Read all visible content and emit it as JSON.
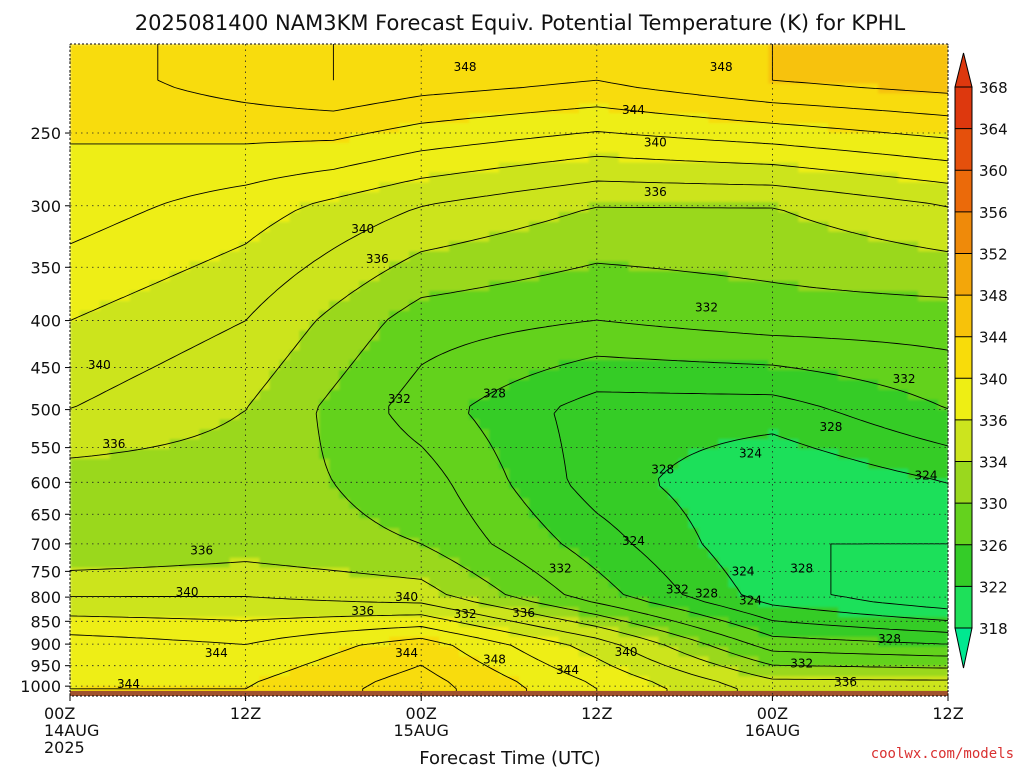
{
  "chart_data": {
    "type": "heatmap",
    "title": "2025081400 NAM3KM Forecast Equiv. Potential Temperature (K) for KPHL",
    "xlabel": "Forecast Time (UTC)",
    "ylabel": "",
    "x_ticks": [
      {
        "hour": 0,
        "lines": [
          "00Z",
          "14AUG",
          "2025"
        ]
      },
      {
        "hour": 12,
        "lines": [
          "12Z"
        ]
      },
      {
        "hour": 24,
        "lines": [
          "00Z",
          "15AUG"
        ]
      },
      {
        "hour": 36,
        "lines": [
          "12Z"
        ]
      },
      {
        "hour": 48,
        "lines": [
          "00Z",
          "16AUG"
        ]
      },
      {
        "hour": 60,
        "lines": [
          "12Z"
        ]
      }
    ],
    "xlim": [
      0,
      60
    ],
    "y_ticks": [
      250,
      300,
      350,
      400,
      450,
      500,
      550,
      600,
      650,
      700,
      750,
      800,
      850,
      900,
      950,
      1000
    ],
    "ylim": [
      1025,
      200
    ],
    "y_scale": "log",
    "grid": true,
    "colorbar": {
      "levels": [
        318,
        322,
        326,
        330,
        334,
        336,
        340,
        344,
        348,
        352,
        356,
        360,
        364,
        368
      ],
      "colors": [
        "#00e878",
        "#1ee05a",
        "#34cc28",
        "#64d21e",
        "#9ad81e",
        "#cce41e",
        "#eeee14",
        "#f8dc0a",
        "#f7c20a",
        "#f3a60a",
        "#ef8a0a",
        "#eb6a0a",
        "#e5500c",
        "#dd380e"
      ],
      "arrow_top_color": "#dd380e",
      "arrow_bottom_color": "#00e890"
    },
    "field_points": [
      {
        "hour": 0,
        "p": 220,
        "v": 345
      },
      {
        "hour": 6,
        "p": 220,
        "v": 346
      },
      {
        "hour": 12,
        "p": 220,
        "v": 347
      },
      {
        "hour": 18,
        "p": 220,
        "v": 348
      },
      {
        "hour": 24,
        "p": 220,
        "v": 347
      },
      {
        "hour": 36,
        "p": 220,
        "v": 346
      },
      {
        "hour": 48,
        "p": 220,
        "v": 348
      },
      {
        "hour": 60,
        "p": 220,
        "v": 349
      },
      {
        "hour": 0,
        "p": 300,
        "v": 343
      },
      {
        "hour": 12,
        "p": 300,
        "v": 341
      },
      {
        "hour": 24,
        "p": 300,
        "v": 338
      },
      {
        "hour": 36,
        "p": 300,
        "v": 336
      },
      {
        "hour": 48,
        "p": 300,
        "v": 336
      },
      {
        "hour": 60,
        "p": 300,
        "v": 338
      },
      {
        "hour": 0,
        "p": 400,
        "v": 340
      },
      {
        "hour": 12,
        "p": 400,
        "v": 338
      },
      {
        "hour": 24,
        "p": 400,
        "v": 333
      },
      {
        "hour": 36,
        "p": 400,
        "v": 332
      },
      {
        "hour": 48,
        "p": 400,
        "v": 333
      },
      {
        "hour": 60,
        "p": 400,
        "v": 333
      },
      {
        "hour": 0,
        "p": 500,
        "v": 338
      },
      {
        "hour": 12,
        "p": 500,
        "v": 336
      },
      {
        "hour": 24,
        "p": 500,
        "v": 331
      },
      {
        "hour": 36,
        "p": 500,
        "v": 327
      },
      {
        "hour": 48,
        "p": 500,
        "v": 327
      },
      {
        "hour": 60,
        "p": 500,
        "v": 330
      },
      {
        "hour": 0,
        "p": 600,
        "v": 335
      },
      {
        "hour": 12,
        "p": 600,
        "v": 335
      },
      {
        "hour": 24,
        "p": 600,
        "v": 333
      },
      {
        "hour": 36,
        "p": 600,
        "v": 327
      },
      {
        "hour": 48,
        "p": 600,
        "v": 324
      },
      {
        "hour": 60,
        "p": 600,
        "v": 326
      },
      {
        "hour": 0,
        "p": 700,
        "v": 334
      },
      {
        "hour": 12,
        "p": 700,
        "v": 335
      },
      {
        "hour": 24,
        "p": 700,
        "v": 334
      },
      {
        "hour": 36,
        "p": 700,
        "v": 329
      },
      {
        "hour": 48,
        "p": 700,
        "v": 324
      },
      {
        "hour": 60,
        "p": 700,
        "v": 324
      },
      {
        "hour": 0,
        "p": 800,
        "v": 338
      },
      {
        "hour": 12,
        "p": 800,
        "v": 338
      },
      {
        "hour": 24,
        "p": 800,
        "v": 337
      },
      {
        "hour": 36,
        "p": 800,
        "v": 331
      },
      {
        "hour": 48,
        "p": 800,
        "v": 325
      },
      {
        "hour": 60,
        "p": 800,
        "v": 322
      },
      {
        "hour": 0,
        "p": 900,
        "v": 343
      },
      {
        "hour": 12,
        "p": 900,
        "v": 342
      },
      {
        "hour": 24,
        "p": 900,
        "v": 345
      },
      {
        "hour": 36,
        "p": 900,
        "v": 339
      },
      {
        "hour": 48,
        "p": 900,
        "v": 331
      },
      {
        "hour": 60,
        "p": 900,
        "v": 330
      },
      {
        "hour": 0,
        "p": 1000,
        "v": 344
      },
      {
        "hour": 12,
        "p": 1000,
        "v": 344
      },
      {
        "hour": 24,
        "p": 1000,
        "v": 347
      },
      {
        "hour": 36,
        "p": 1000,
        "v": 342
      },
      {
        "hour": 48,
        "p": 1000,
        "v": 337
      },
      {
        "hour": 60,
        "p": 1000,
        "v": 337
      }
    ],
    "contour_labels": [
      {
        "text": "348",
        "hour": 27,
        "p": 212
      },
      {
        "text": "348",
        "hour": 44.5,
        "p": 212
      },
      {
        "text": "344",
        "hour": 38.5,
        "p": 236
      },
      {
        "text": "340",
        "hour": 40,
        "p": 256
      },
      {
        "text": "336",
        "hour": 40,
        "p": 290
      },
      {
        "text": "340",
        "hour": 20,
        "p": 318
      },
      {
        "text": "336",
        "hour": 21,
        "p": 343
      },
      {
        "text": "332",
        "hour": 43.5,
        "p": 387
      },
      {
        "text": "340",
        "hour": 2,
        "p": 447
      },
      {
        "text": "332",
        "hour": 22.5,
        "p": 487
      },
      {
        "text": "328",
        "hour": 29,
        "p": 480
      },
      {
        "text": "332",
        "hour": 57,
        "p": 463
      },
      {
        "text": "328",
        "hour": 52,
        "p": 522
      },
      {
        "text": "336",
        "hour": 3,
        "p": 545
      },
      {
        "text": "324",
        "hour": 46.5,
        "p": 558
      },
      {
        "text": "328",
        "hour": 40.5,
        "p": 581
      },
      {
        "text": "324",
        "hour": 58.5,
        "p": 590
      },
      {
        "text": "324",
        "hour": 38.5,
        "p": 695
      },
      {
        "text": "336",
        "hour": 9,
        "p": 712
      },
      {
        "text": "332",
        "hour": 33.5,
        "p": 745
      },
      {
        "text": "324",
        "hour": 46,
        "p": 750
      },
      {
        "text": "328",
        "hour": 50,
        "p": 745
      },
      {
        "text": "340",
        "hour": 8,
        "p": 790
      },
      {
        "text": "332",
        "hour": 41.5,
        "p": 785
      },
      {
        "text": "328",
        "hour": 43.5,
        "p": 793
      },
      {
        "text": "340",
        "hour": 23,
        "p": 800
      },
      {
        "text": "324",
        "hour": 46.5,
        "p": 807
      },
      {
        "text": "336",
        "hour": 20,
        "p": 828
      },
      {
        "text": "332",
        "hour": 27,
        "p": 835
      },
      {
        "text": "336",
        "hour": 31,
        "p": 832
      },
      {
        "text": "328",
        "hour": 56,
        "p": 888
      },
      {
        "text": "344",
        "hour": 10,
        "p": 920
      },
      {
        "text": "344",
        "hour": 23,
        "p": 920
      },
      {
        "text": "340",
        "hour": 38,
        "p": 918
      },
      {
        "text": "348",
        "hour": 29,
        "p": 935
      },
      {
        "text": "332",
        "hour": 50,
        "p": 945
      },
      {
        "text": "344",
        "hour": 34,
        "p": 960
      },
      {
        "text": "336",
        "hour": 53,
        "p": 990
      },
      {
        "text": "344",
        "hour": 4,
        "p": 995
      }
    ],
    "credit": "coolwx.com/models"
  }
}
